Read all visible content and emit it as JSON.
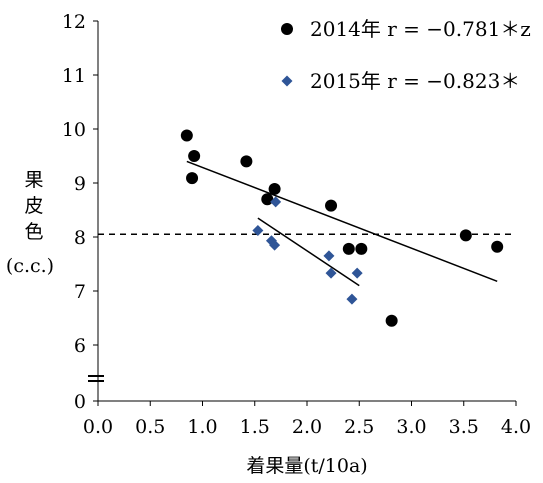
{
  "chart_data": {
    "type": "scatter",
    "title": "",
    "xlabel": "着果量(t/10a)",
    "ylabel_lines": [
      "果",
      "皮",
      "色",
      "(c.c.)"
    ],
    "xlim": [
      0.0,
      4.0
    ],
    "ylim": [
      0,
      12
    ],
    "axis_break": "y-axis between 0 and 6",
    "x_ticks": [
      "0.0",
      "0.5",
      "1.0",
      "1.5",
      "2.0",
      "2.5",
      "3.0",
      "3.5",
      "4.0"
    ],
    "y_ticks": [
      "0",
      "6",
      "7",
      "8",
      "9",
      "10",
      "11",
      "12"
    ],
    "grid": false,
    "legend_position": "top-right",
    "reference_line": {
      "y": 8.05,
      "style": "dashed"
    },
    "series": [
      {
        "name": "2014年",
        "legend_label": "2014年 r = −0.781＊z",
        "marker": "circle",
        "color": "#000000",
        "points": [
          [
            0.85,
            9.88
          ],
          [
            0.92,
            9.5
          ],
          [
            0.9,
            9.09
          ],
          [
            1.42,
            9.4
          ],
          [
            1.62,
            8.7
          ],
          [
            1.69,
            8.89
          ],
          [
            2.23,
            8.58
          ],
          [
            2.4,
            7.78
          ],
          [
            2.52,
            7.78
          ],
          [
            2.81,
            6.45
          ],
          [
            3.52,
            8.03
          ],
          [
            3.82,
            7.82
          ]
        ],
        "trendline": [
          [
            0.85,
            9.4
          ],
          [
            3.82,
            7.18
          ]
        ]
      },
      {
        "name": "2015年",
        "legend_label": "2015年 r = −0.823＊",
        "marker": "diamond",
        "color": "#2f5597",
        "points": [
          [
            1.53,
            8.12
          ],
          [
            1.66,
            7.93
          ],
          [
            1.69,
            7.85
          ],
          [
            1.7,
            8.65
          ],
          [
            2.21,
            7.65
          ],
          [
            2.23,
            7.33
          ],
          [
            2.48,
            7.33
          ],
          [
            2.43,
            6.85
          ]
        ],
        "trendline": [
          [
            1.53,
            8.35
          ],
          [
            2.5,
            7.1
          ]
        ]
      }
    ]
  }
}
